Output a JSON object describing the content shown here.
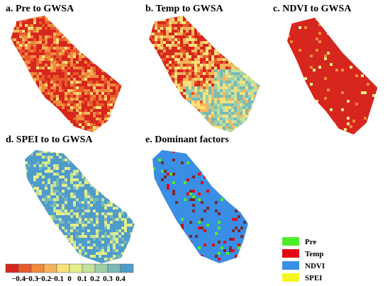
{
  "panels": [
    {
      "title": "a. Pre to GWSA"
    },
    {
      "title": "b. Temp to GWSA"
    },
    {
      "title": "c. NDVI  to GWSA"
    },
    {
      "title": "d. SPEI to  to GWSA"
    },
    {
      "title": "e. Dominant factors"
    }
  ],
  "colorbar": {
    "colors": [
      "#d7261e",
      "#e85a2c",
      "#f08a3d",
      "#f5b45c",
      "#f8e27a",
      "#e4ee8a",
      "#c3e29c",
      "#9dcfa9",
      "#79b9b6",
      "#4f9bcb"
    ],
    "labels": [
      "−0.4",
      "−0.3",
      "−0.2",
      "−0.1",
      "0",
      "0.1",
      "0.2",
      "0.3",
      "0.4"
    ]
  },
  "legend": [
    {
      "label": "Pre",
      "color": "#4ded2a"
    },
    {
      "label": "Temp",
      "color": "#e30613"
    },
    {
      "label": "NDVI",
      "color": "#3a8ee6"
    },
    {
      "label": "SPEI",
      "color": "#f5f521"
    }
  ]
}
